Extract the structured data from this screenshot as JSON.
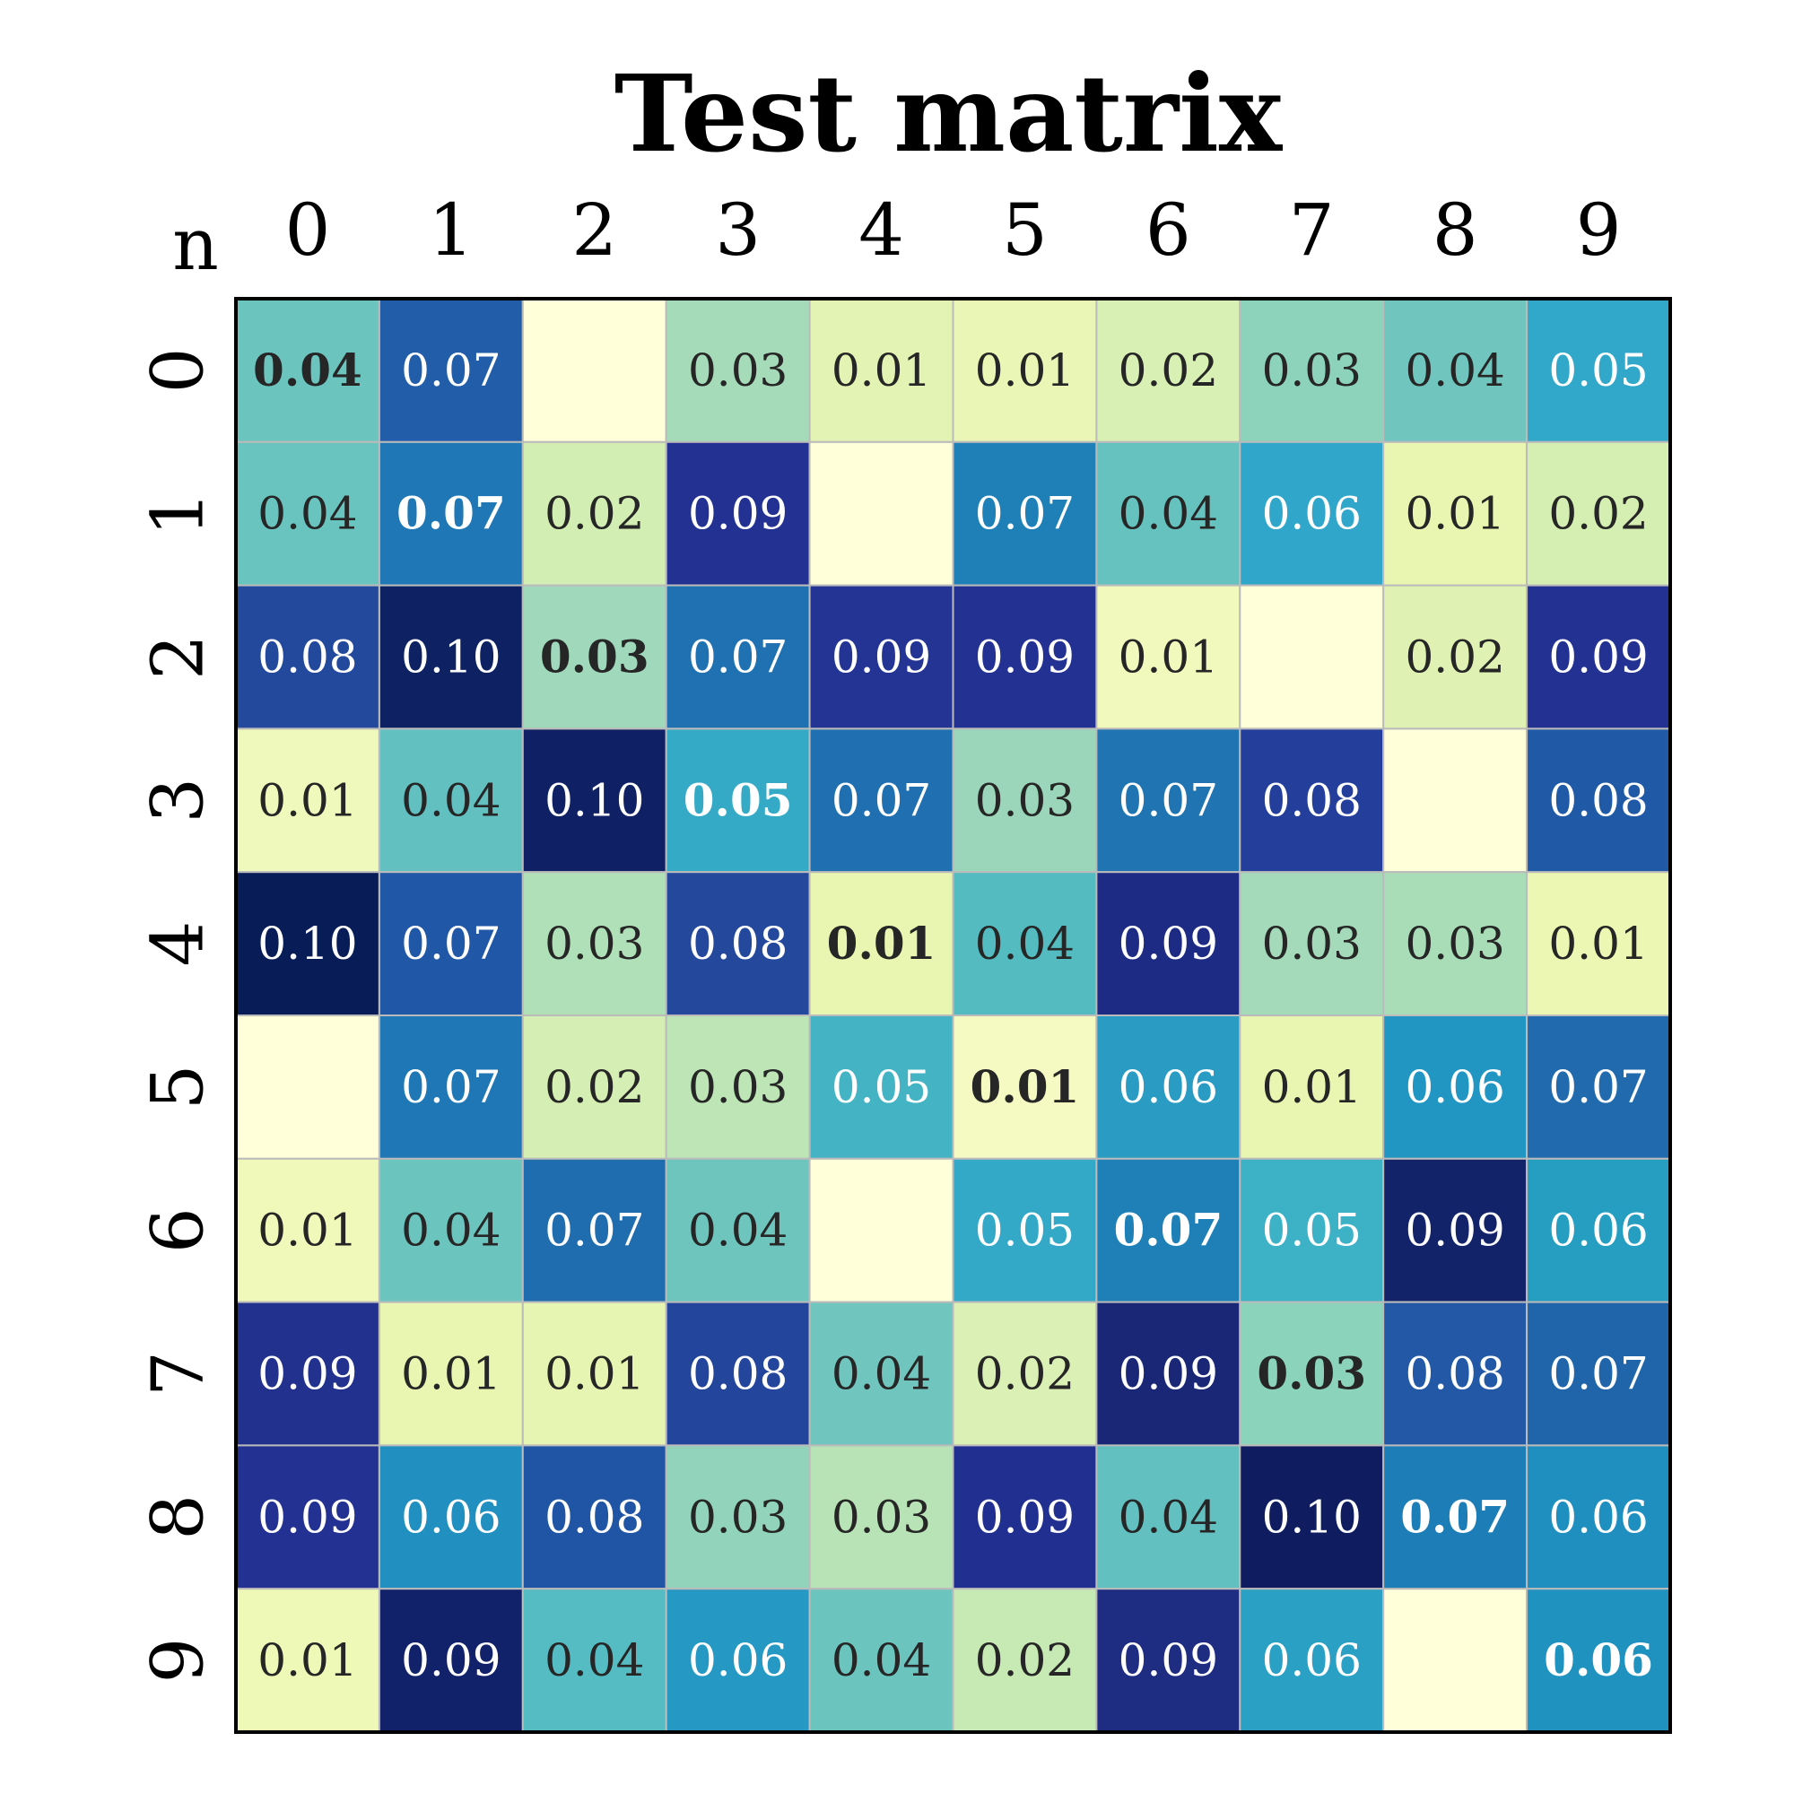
{
  "chart_data": {
    "type": "heatmap",
    "title": "Test matrix",
    "corner_label": "n",
    "x_labels": [
      "0",
      "1",
      "2",
      "3",
      "4",
      "5",
      "6",
      "7",
      "8",
      "9"
    ],
    "y_labels": [
      "0",
      "1",
      "2",
      "3",
      "4",
      "5",
      "6",
      "7",
      "8",
      "9"
    ],
    "values": [
      [
        0.04,
        0.07,
        null,
        0.03,
        0.01,
        0.01,
        0.02,
        0.03,
        0.04,
        0.05
      ],
      [
        0.04,
        0.07,
        0.02,
        0.09,
        null,
        0.07,
        0.04,
        0.06,
        0.01,
        0.02
      ],
      [
        0.08,
        0.1,
        0.03,
        0.07,
        0.09,
        0.09,
        0.01,
        null,
        0.02,
        0.09
      ],
      [
        0.01,
        0.04,
        0.1,
        0.05,
        0.07,
        0.03,
        0.07,
        0.08,
        null,
        0.08
      ],
      [
        0.1,
        0.07,
        0.03,
        0.08,
        0.01,
        0.04,
        0.09,
        0.03,
        0.03,
        0.01
      ],
      [
        null,
        0.07,
        0.02,
        0.03,
        0.05,
        0.01,
        0.06,
        0.01,
        0.06,
        0.07
      ],
      [
        0.01,
        0.04,
        0.07,
        0.04,
        null,
        0.05,
        0.07,
        0.05,
        0.09,
        0.06
      ],
      [
        0.09,
        0.01,
        0.01,
        0.08,
        0.04,
        0.02,
        0.09,
        0.03,
        0.08,
        0.07
      ],
      [
        0.09,
        0.06,
        0.08,
        0.03,
        0.03,
        0.09,
        0.04,
        0.1,
        0.07,
        0.06
      ],
      [
        0.01,
        0.09,
        0.04,
        0.06,
        0.04,
        0.02,
        0.09,
        0.06,
        null,
        0.06
      ]
    ],
    "colors": [
      [
        "#6cc4bf",
        "#215da9",
        "#ffffd9",
        "#a6dbb9",
        "#e2f3b4",
        "#eaf6b6",
        "#d8f0b3",
        "#8dd3bc",
        "#70c6be",
        "#31a8c9"
      ],
      [
        "#69c4bf",
        "#1f77b5",
        "#d3eeb3",
        "#233192",
        "#ffffd9",
        "#1f80b8",
        "#66c2bf",
        "#30a7ca",
        "#e9f6b2",
        "#d5efb3"
      ],
      [
        "#23499d",
        "#0d2163",
        "#9fd8ba",
        "#2071b1",
        "#243494",
        "#233192",
        "#f1f9bc",
        "#ffffd9",
        "#dff2b3",
        "#233192"
      ],
      [
        "#eff9bb",
        "#62c0c0",
        "#0f2164",
        "#35aac6",
        "#206fb0",
        "#9bd6ba",
        "#2174b2",
        "#243e9c",
        "#ffffd9",
        "#2059a6"
      ],
      [
        "#081d58",
        "#2057a6",
        "#afe0b8",
        "#24499c",
        "#e8f6b1",
        "#54bbc1",
        "#1d2b84",
        "#a4d9b9",
        "#a9ddb8",
        "#ebf7b3"
      ],
      [
        "#ffffd9",
        "#1f77b5",
        "#d5eeb3",
        "#bde5b6",
        "#44b4c4",
        "#f4fac2",
        "#2a9cc3",
        "#e9f6b2",
        "#2196c3",
        "#206aad"
      ],
      [
        "#f0f9ba",
        "#6cc4bf",
        "#1f6dae",
        "#6dc5be",
        "#ffffd9",
        "#33a9c7",
        "#1f80b8",
        "#3db1c5",
        "#12236a",
        "#259ec2"
      ],
      [
        "#22318d",
        "#e8f6b1",
        "#e7f5b2",
        "#24459c",
        "#70c6be",
        "#dbf0b4",
        "#1a2776",
        "#8cd3bc",
        "#2258a6",
        "#2064aa"
      ],
      [
        "#233192",
        "#218fc0",
        "#2055a5",
        "#92d4bb",
        "#b8e3b6",
        "#213090",
        "#62c0c0",
        "#0f1d60",
        "#1d7db6",
        "#1f8fc0"
      ],
      [
        "#eef9b8",
        "#11216a",
        "#54bcc2",
        "#2599c3",
        "#6cc4bf",
        "#c7e9b4",
        "#1e2c82",
        "#2aa0c4",
        "#ffffd9",
        "#1f92c0"
      ]
    ]
  }
}
